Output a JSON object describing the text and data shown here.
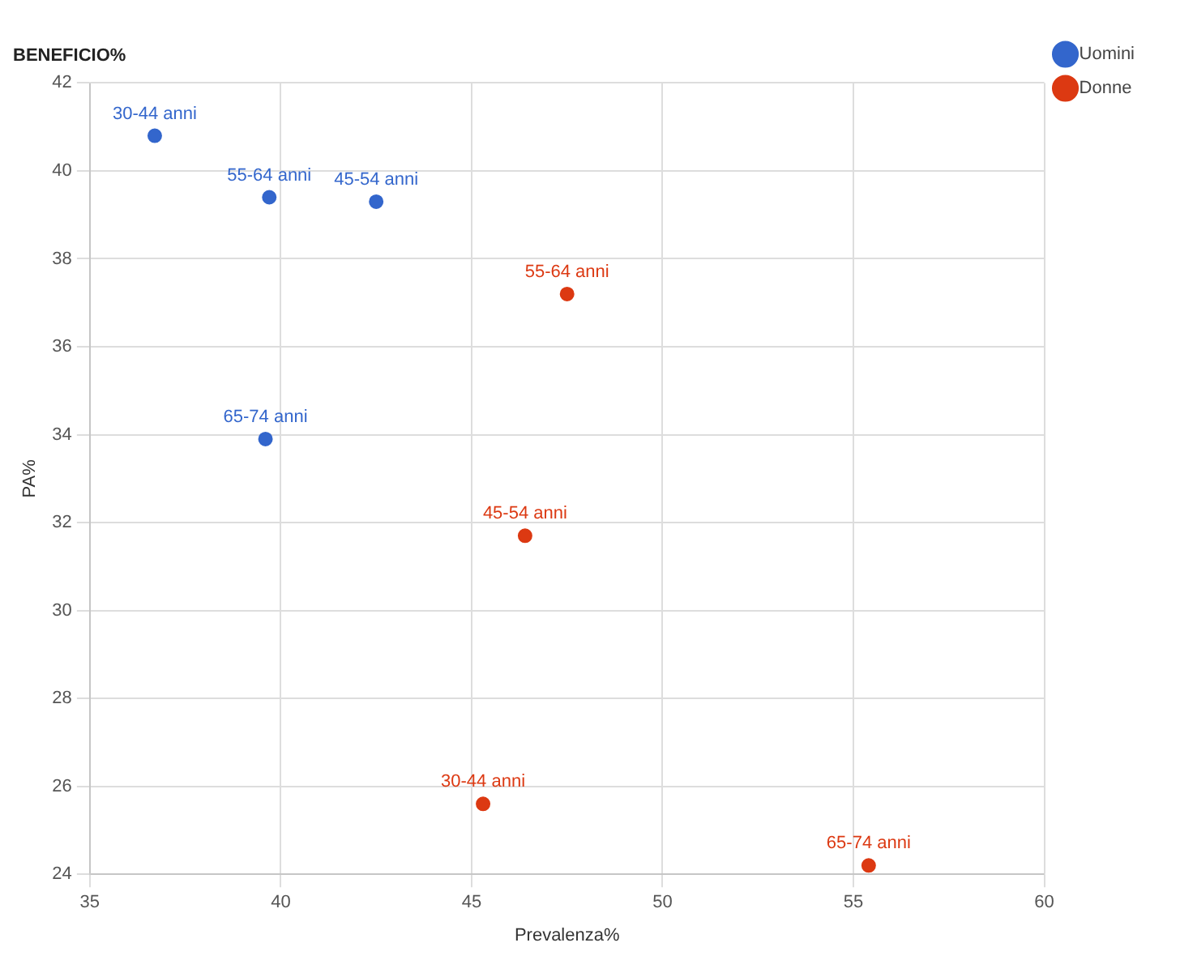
{
  "chart_data": {
    "type": "scatter",
    "title": "BENEFICIO%",
    "xlabel": "Prevalenza%",
    "ylabel": "PA%",
    "xlim": [
      35,
      60
    ],
    "xticks": [
      35,
      40,
      45,
      50,
      55,
      60
    ],
    "ylim": [
      24,
      42
    ],
    "yticks": [
      24,
      26,
      28,
      30,
      32,
      34,
      36,
      38,
      40,
      42
    ],
    "grid": true,
    "legend": "top right",
    "marker": "circle",
    "series": [
      {
        "name": "Uomini",
        "color": "#3366cc",
        "x": [
          36.7,
          39.7,
          42.5,
          39.6
        ],
        "values": [
          40.8,
          39.4,
          39.3,
          33.9
        ],
        "value_labels": [
          "30-44 anni",
          "55-64 anni",
          "45-54 anni",
          "65-74 anni"
        ]
      },
      {
        "name": "Donne",
        "color": "#dc3912",
        "x": [
          47.5,
          46.4,
          45.3,
          55.4
        ],
        "values": [
          37.2,
          31.7,
          25.6,
          24.2
        ],
        "value_labels": [
          "55-64 anni",
          "45-54 anni",
          "30-44 anni",
          "65-74 anni"
        ]
      }
    ]
  }
}
